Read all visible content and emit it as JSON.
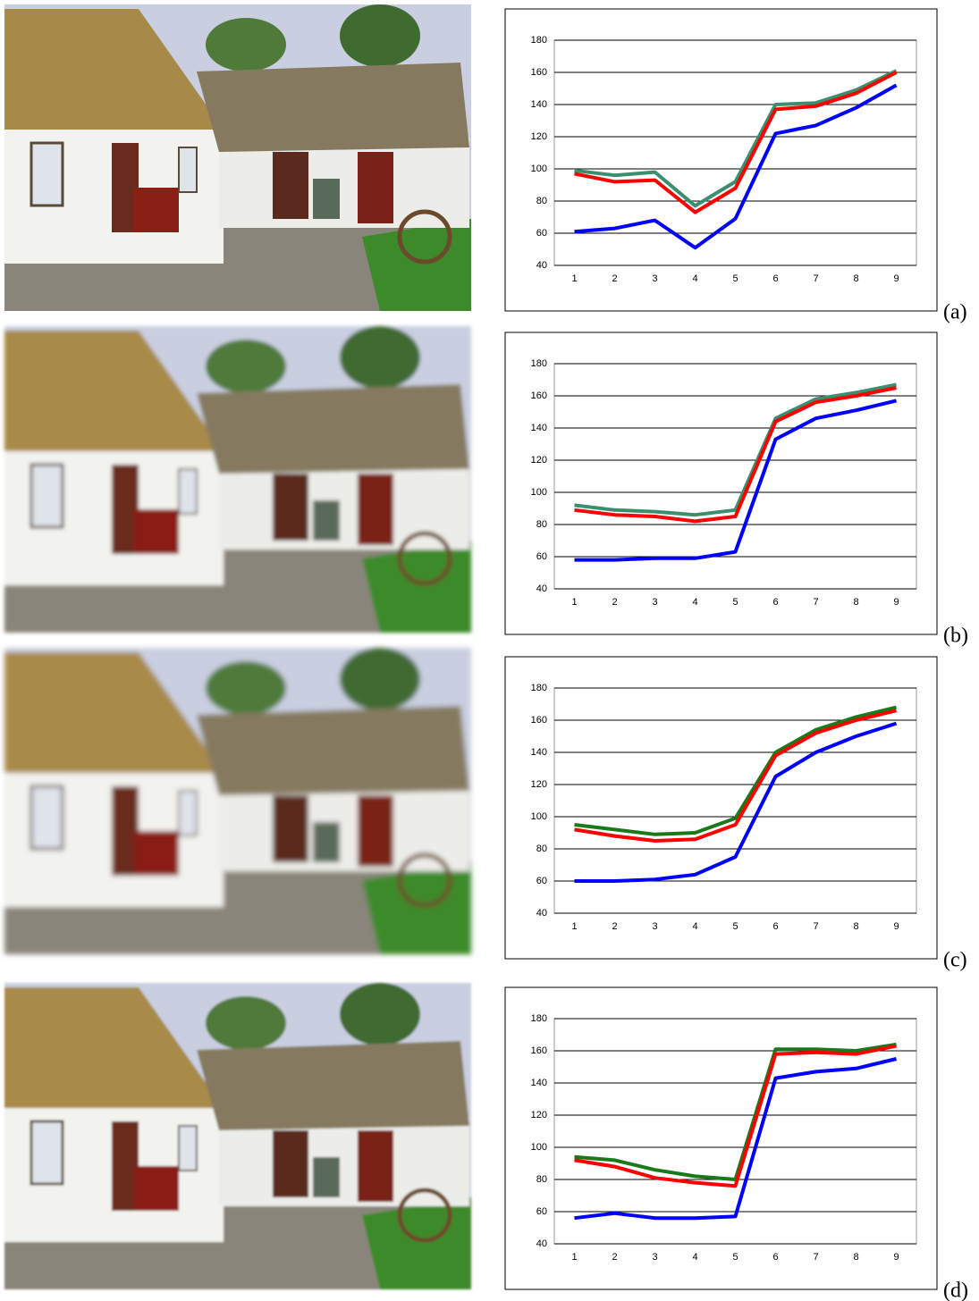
{
  "chart_data": [
    {
      "type": "line",
      "label": "(a)",
      "categories": [
        1,
        2,
        3,
        4,
        5,
        6,
        7,
        8,
        9
      ],
      "ylim": [
        40,
        180
      ],
      "yticks": [
        40,
        60,
        80,
        100,
        120,
        140,
        160,
        180
      ],
      "grid": true,
      "series": [
        {
          "color": "#3a8f6e",
          "values": [
            99,
            96,
            98,
            77,
            92,
            140,
            141,
            149,
            161
          ]
        },
        {
          "color": "#ff0000",
          "values": [
            97,
            92,
            93,
            73,
            88,
            137,
            139,
            147,
            160
          ]
        },
        {
          "color": "#0000ff",
          "values": [
            61,
            63,
            68,
            51,
            69,
            122,
            127,
            138,
            152
          ]
        }
      ]
    },
    {
      "type": "line",
      "label": "(b)",
      "categories": [
        1,
        2,
        3,
        4,
        5,
        6,
        7,
        8,
        9
      ],
      "ylim": [
        40,
        180
      ],
      "yticks": [
        40,
        60,
        80,
        100,
        120,
        140,
        160,
        180
      ],
      "grid": true,
      "series": [
        {
          "color": "#3a8f6e",
          "values": [
            92,
            89,
            88,
            86,
            89,
            146,
            158,
            162,
            167
          ]
        },
        {
          "color": "#ff0000",
          "values": [
            89,
            86,
            85,
            82,
            85,
            144,
            156,
            160,
            165
          ]
        },
        {
          "color": "#0000ff",
          "values": [
            58,
            58,
            59,
            59,
            63,
            133,
            146,
            151,
            157
          ]
        }
      ]
    },
    {
      "type": "line",
      "label": "(c)",
      "categories": [
        1,
        2,
        3,
        4,
        5,
        6,
        7,
        8,
        9
      ],
      "ylim": [
        40,
        180
      ],
      "yticks": [
        40,
        60,
        80,
        100,
        120,
        140,
        160,
        180
      ],
      "grid": true,
      "series": [
        {
          "color": "#1a7a1a",
          "values": [
            95,
            92,
            89,
            90,
            99,
            140,
            154,
            162,
            168
          ]
        },
        {
          "color": "#ff0000",
          "values": [
            92,
            88,
            85,
            86,
            95,
            138,
            152,
            160,
            166
          ]
        },
        {
          "color": "#0000ff",
          "values": [
            60,
            60,
            61,
            64,
            75,
            125,
            140,
            150,
            158
          ]
        }
      ]
    },
    {
      "type": "line",
      "label": "(d)",
      "categories": [
        1,
        2,
        3,
        4,
        5,
        6,
        7,
        8,
        9
      ],
      "ylim": [
        40,
        180
      ],
      "yticks": [
        40,
        60,
        80,
        100,
        120,
        140,
        160,
        180
      ],
      "grid": true,
      "series": [
        {
          "color": "#1a7a1a",
          "values": [
            94,
            92,
            86,
            82,
            80,
            161,
            161,
            160,
            164
          ]
        },
        {
          "color": "#ff0000",
          "values": [
            92,
            88,
            81,
            78,
            76,
            158,
            159,
            158,
            163
          ]
        },
        {
          "color": "#0000ff",
          "values": [
            56,
            59,
            56,
            56,
            57,
            143,
            147,
            149,
            155
          ]
        }
      ]
    }
  ]
}
